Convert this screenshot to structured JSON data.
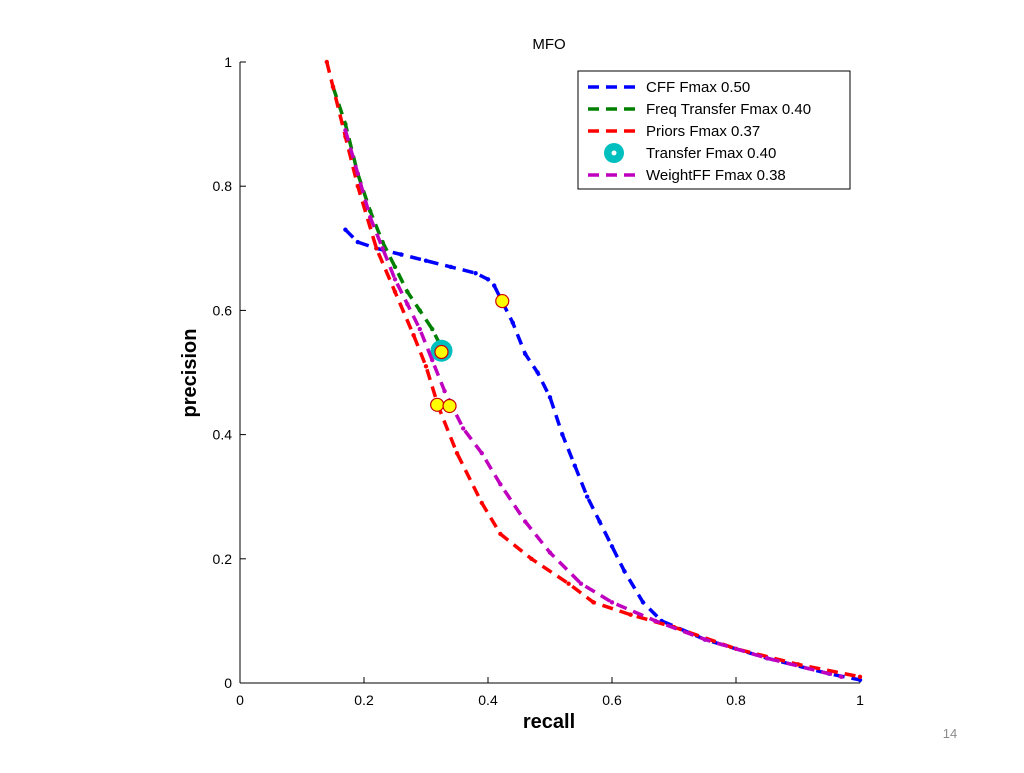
{
  "slide": {
    "number": "14"
  },
  "chart_data": {
    "type": "line",
    "title": "MFO",
    "xlabel": "recall",
    "ylabel": "precision",
    "xlim": [
      0,
      1
    ],
    "ylim": [
      0,
      1
    ],
    "xticks": [
      0,
      0.2,
      0.4,
      0.6,
      0.8,
      1
    ],
    "yticks": [
      0,
      0.2,
      0.4,
      0.6,
      0.8,
      1
    ],
    "xtick_labels": [
      "0",
      "0.2",
      "0.4",
      "0.6",
      "0.8",
      "1"
    ],
    "ytick_labels": [
      "0",
      "0.2",
      "0.4",
      "0.6",
      "0.8",
      "1"
    ],
    "grid": false,
    "legend_position": "top-right",
    "series": [
      {
        "name": "CFF Fmax 0.50",
        "color": "#0000ff",
        "style": "dashed",
        "points": [
          [
            0.17,
            0.73
          ],
          [
            0.19,
            0.71
          ],
          [
            0.22,
            0.7
          ],
          [
            0.26,
            0.69
          ],
          [
            0.3,
            0.68
          ],
          [
            0.34,
            0.67
          ],
          [
            0.38,
            0.66
          ],
          [
            0.4,
            0.65
          ],
          [
            0.41,
            0.64
          ],
          [
            0.42,
            0.62
          ],
          [
            0.44,
            0.58
          ],
          [
            0.46,
            0.53
          ],
          [
            0.48,
            0.5
          ],
          [
            0.5,
            0.46
          ],
          [
            0.52,
            0.4
          ],
          [
            0.54,
            0.35
          ],
          [
            0.56,
            0.3
          ],
          [
            0.58,
            0.26
          ],
          [
            0.6,
            0.22
          ],
          [
            0.62,
            0.18
          ],
          [
            0.65,
            0.13
          ],
          [
            0.68,
            0.1
          ],
          [
            0.75,
            0.07
          ],
          [
            0.85,
            0.04
          ],
          [
            0.95,
            0.015
          ],
          [
            1.0,
            0.005
          ]
        ]
      },
      {
        "name": "Freq Transfer Fmax 0.40",
        "color": "#008000",
        "style": "dashed",
        "points": [
          [
            0.15,
            0.96
          ],
          [
            0.17,
            0.9
          ],
          [
            0.19,
            0.82
          ],
          [
            0.21,
            0.76
          ],
          [
            0.23,
            0.71
          ],
          [
            0.25,
            0.67
          ],
          [
            0.27,
            0.63
          ],
          [
            0.29,
            0.6
          ],
          [
            0.31,
            0.57
          ],
          [
            0.32,
            0.55
          ]
        ]
      },
      {
        "name": "Priors Fmax 0.37",
        "color": "#ff0000",
        "style": "dashed",
        "points": [
          [
            0.14,
            1.0
          ],
          [
            0.15,
            0.96
          ],
          [
            0.17,
            0.88
          ],
          [
            0.19,
            0.8
          ],
          [
            0.22,
            0.7
          ],
          [
            0.25,
            0.63
          ],
          [
            0.28,
            0.56
          ],
          [
            0.3,
            0.51
          ],
          [
            0.32,
            0.445
          ],
          [
            0.35,
            0.37
          ],
          [
            0.39,
            0.29
          ],
          [
            0.42,
            0.24
          ],
          [
            0.47,
            0.2
          ],
          [
            0.53,
            0.16
          ],
          [
            0.57,
            0.13
          ],
          [
            0.63,
            0.11
          ],
          [
            0.7,
            0.09
          ],
          [
            0.8,
            0.055
          ],
          [
            0.9,
            0.03
          ],
          [
            1.0,
            0.01
          ]
        ]
      },
      {
        "name": "Transfer Fmax 0.40",
        "color": "#00bfbf",
        "style": "marker",
        "points": [
          [
            0.325,
            0.535
          ]
        ]
      },
      {
        "name": "WeightFF Fmax 0.38",
        "color": "#bf00bf",
        "style": "dashed",
        "points": [
          [
            0.17,
            0.89
          ],
          [
            0.19,
            0.82
          ],
          [
            0.21,
            0.75
          ],
          [
            0.23,
            0.7
          ],
          [
            0.25,
            0.65
          ],
          [
            0.27,
            0.61
          ],
          [
            0.29,
            0.57
          ],
          [
            0.31,
            0.52
          ],
          [
            0.33,
            0.47
          ],
          [
            0.36,
            0.41
          ],
          [
            0.39,
            0.37
          ],
          [
            0.42,
            0.32
          ],
          [
            0.46,
            0.26
          ],
          [
            0.5,
            0.21
          ],
          [
            0.55,
            0.16
          ],
          [
            0.6,
            0.13
          ],
          [
            0.67,
            0.1
          ],
          [
            0.75,
            0.07
          ],
          [
            0.85,
            0.04
          ],
          [
            0.97,
            0.01
          ]
        ]
      }
    ],
    "fmax_markers": {
      "fill": "#ffff00",
      "stroke": "#cc0000",
      "points": [
        [
          0.423,
          0.615
        ],
        [
          0.325,
          0.533
        ],
        [
          0.318,
          0.448
        ],
        [
          0.338,
          0.446
        ]
      ]
    },
    "legend": [
      {
        "label": "CFF Fmax 0.50",
        "color": "#0000ff",
        "kind": "line"
      },
      {
        "label": "Freq Transfer Fmax 0.40",
        "color": "#008000",
        "kind": "line"
      },
      {
        "label": "Priors Fmax 0.37",
        "color": "#ff0000",
        "kind": "line"
      },
      {
        "label": "Transfer Fmax 0.40",
        "color": "#00bfbf",
        "kind": "marker"
      },
      {
        "label": "WeightFF Fmax 0.38",
        "color": "#bf00bf",
        "kind": "line"
      }
    ]
  }
}
